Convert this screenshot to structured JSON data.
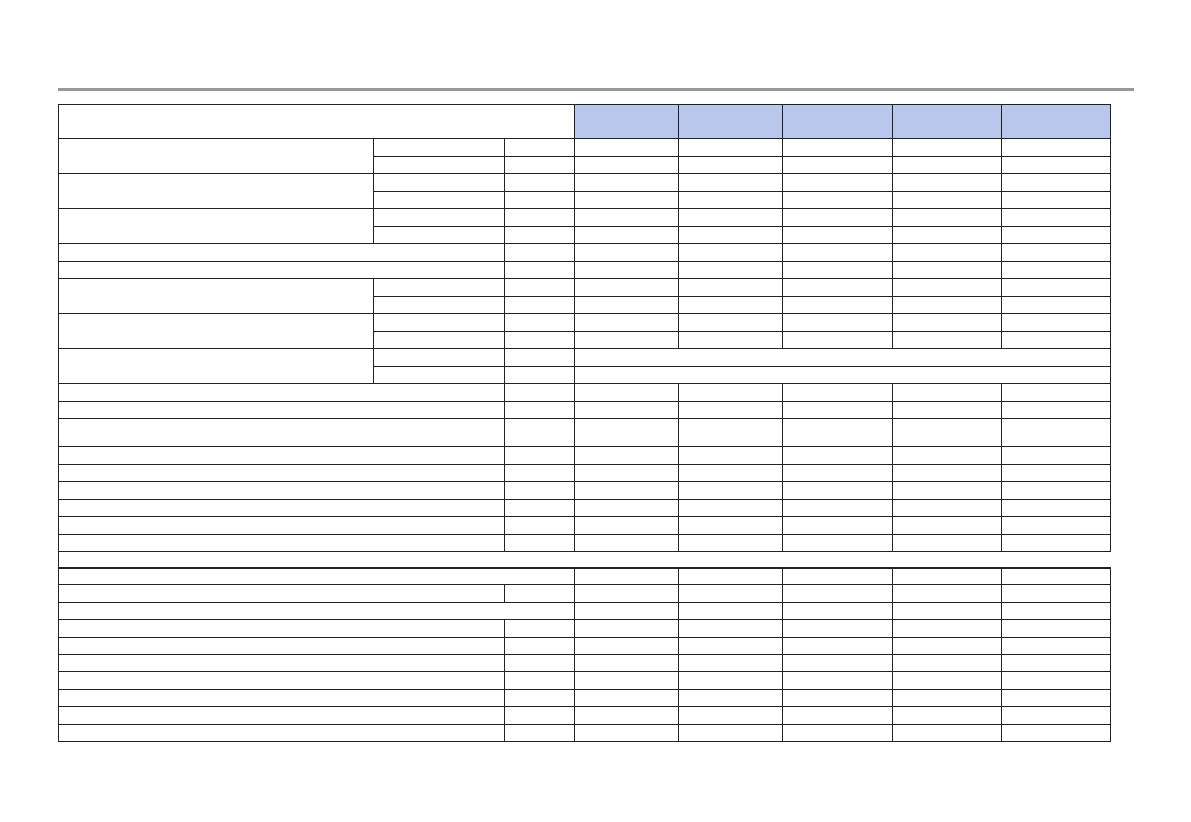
{
  "colors": {
    "header_fill": "#b8c7ea",
    "border": "#222222",
    "top_rule": "#999999"
  },
  "table": {
    "header": {
      "title": "",
      "columns": [
        "",
        "",
        "",
        "",
        ""
      ]
    },
    "cells_text": ""
  }
}
